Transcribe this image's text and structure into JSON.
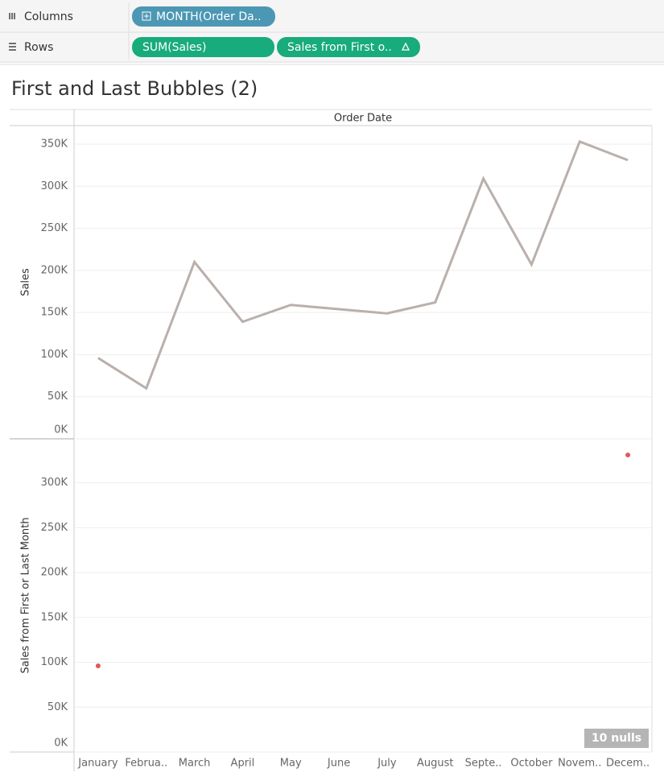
{
  "shelves": {
    "columns": {
      "label": "Columns",
      "pills": [
        "MONTH(Order Da.."
      ]
    },
    "rows": {
      "label": "Rows",
      "pills": [
        "SUM(Sales)",
        "Sales from First o.."
      ]
    }
  },
  "sheet_title": "First and Last Bubbles (2)",
  "chart_data": [
    {
      "type": "line",
      "x_label": "Order Date",
      "y_label": "Sales",
      "categories": [
        "January",
        "Februa..",
        "March",
        "April",
        "May",
        "June",
        "July",
        "August",
        "Septe..",
        "October",
        "Novem..",
        "Decem.."
      ],
      "values": [
        96000,
        60000,
        210000,
        139000,
        159000,
        154000,
        149000,
        162000,
        309000,
        207000,
        353000,
        331000
      ],
      "color": "#b9b0ac",
      "ylim": [
        0,
        372000
      ],
      "yticks": [
        {
          "value": 0,
          "label": "0K"
        },
        {
          "value": 50000,
          "label": "50K"
        },
        {
          "value": 100000,
          "label": "100K"
        },
        {
          "value": 150000,
          "label": "150K"
        },
        {
          "value": 200000,
          "label": "200K"
        },
        {
          "value": 250000,
          "label": "250K"
        },
        {
          "value": 300000,
          "label": "300K"
        },
        {
          "value": 350000,
          "label": "350K"
        }
      ],
      "grid": true
    },
    {
      "type": "scatter",
      "y_label": "Sales from First or Last Month",
      "values": [
        96000,
        null,
        null,
        null,
        null,
        null,
        null,
        null,
        null,
        null,
        null,
        331000
      ],
      "color": "#e15759",
      "ylim": [
        0,
        349000
      ],
      "yticks": [
        {
          "value": 0,
          "label": "0K"
        },
        {
          "value": 50000,
          "label": "50K"
        },
        {
          "value": 100000,
          "label": "100K"
        },
        {
          "value": 150000,
          "label": "150K"
        },
        {
          "value": 200000,
          "label": "200K"
        },
        {
          "value": 250000,
          "label": "250K"
        },
        {
          "value": 300000,
          "label": "300K"
        }
      ],
      "grid": true,
      "nulls_label": "10 nulls"
    }
  ]
}
